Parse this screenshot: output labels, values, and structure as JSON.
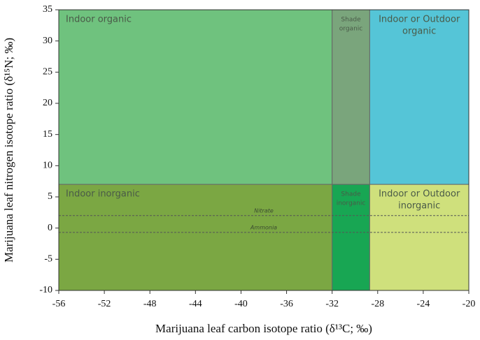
{
  "chart_data": {
    "type": "region",
    "xlabel": "Marijuana leaf carbon isotope ratio (δ¹³C; ‰)",
    "ylabel": "Marijuana leaf nitrogen isotope ratio (δ¹⁵N; ‰)",
    "xlim": [
      -56,
      -20
    ],
    "xticks": [
      -56,
      -52,
      -48,
      -44,
      -40,
      -36,
      -32,
      -28,
      -24,
      -20
    ],
    "ylim": [
      -10,
      35
    ],
    "yticks": [
      -10,
      -5,
      0,
      5,
      10,
      15,
      20,
      25,
      30,
      35
    ],
    "regions": [
      {
        "label": [
          "Indoor organic"
        ],
        "x": [
          -56,
          -32
        ],
        "y": [
          7,
          35
        ],
        "color": "#6fc27e"
      },
      {
        "label": [
          "Shade",
          "organic"
        ],
        "x": [
          -32,
          -28.7
        ],
        "y": [
          7,
          35
        ],
        "color": "#7aa57c"
      },
      {
        "label": [
          "Indoor or Outdoor",
          "organic"
        ],
        "x": [
          -28.7,
          -20
        ],
        "y": [
          7,
          35
        ],
        "color": "#55c5d7"
      },
      {
        "label": [
          "Indoor inorganic"
        ],
        "x": [
          -56,
          -32
        ],
        "y": [
          -10,
          7
        ],
        "color": "#7ba743"
      },
      {
        "label": [
          "Shade",
          "inorganic"
        ],
        "x": [
          -32,
          -28.7
        ],
        "y": [
          -10,
          7
        ],
        "color": "#18a653"
      },
      {
        "label": [
          "Indoor or Outdoor",
          "inorganic"
        ],
        "x": [
          -28.7,
          -20
        ],
        "y": [
          -10,
          7
        ],
        "color": "#cfe07c"
      }
    ],
    "hlines": [
      {
        "name": "Nitrate",
        "value": 2
      },
      {
        "name": "Ammonia",
        "value": -0.7
      }
    ]
  }
}
